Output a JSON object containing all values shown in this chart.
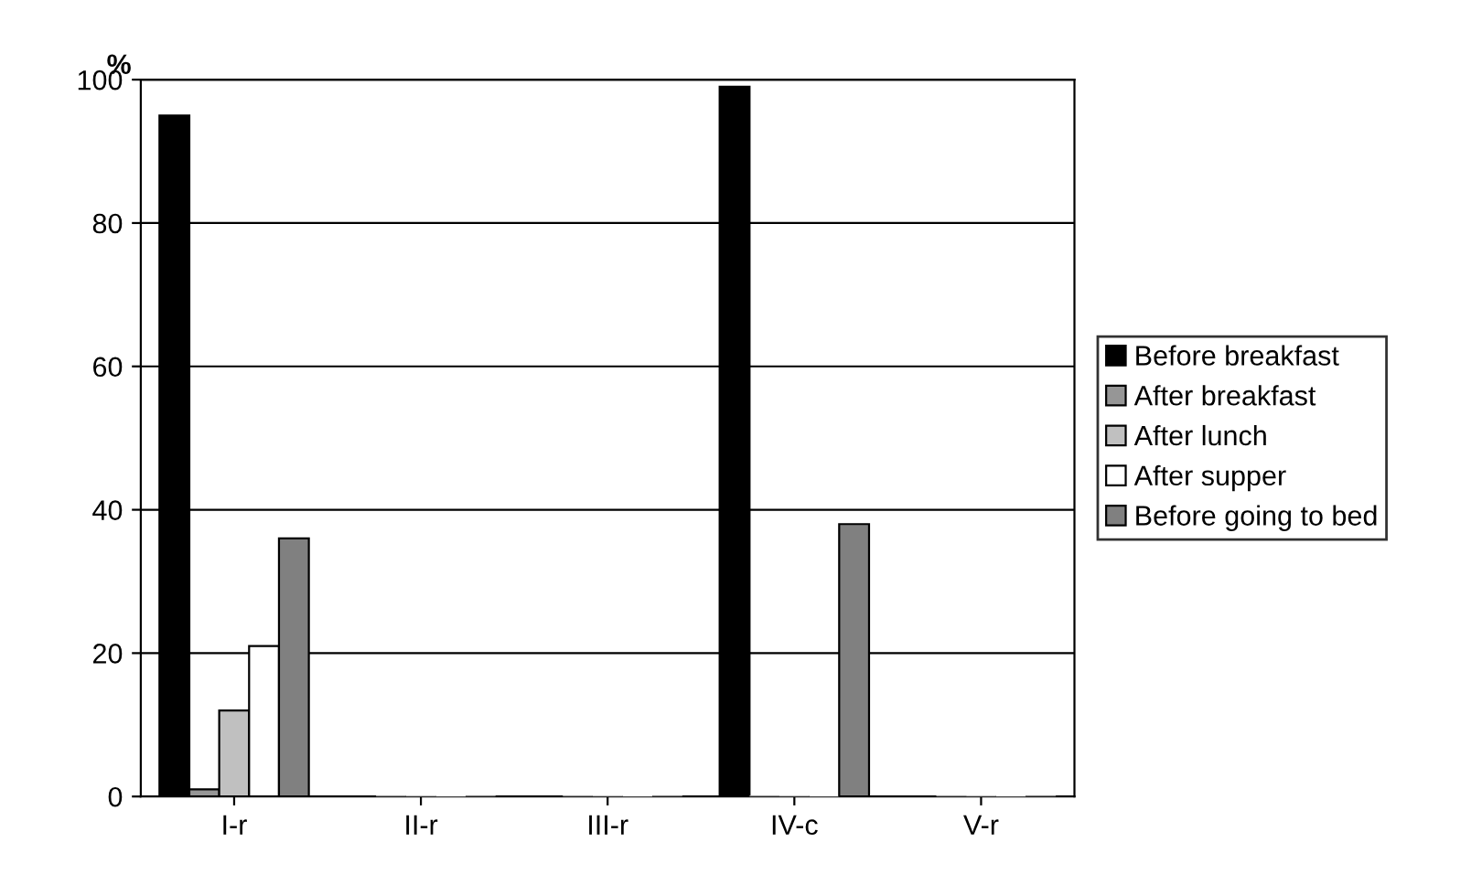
{
  "chart_data": {
    "type": "bar",
    "ylabel": "%",
    "categories": [
      "I-r",
      "II-r",
      "III-r",
      "IV-c",
      "V-r"
    ],
    "series": [
      {
        "name": "Before breakfast",
        "color": "#000000",
        "values": [
          95,
          0,
          0,
          99,
          0
        ]
      },
      {
        "name": "After breakfast",
        "color": "#969696",
        "values": [
          1,
          0,
          0,
          0,
          0
        ]
      },
      {
        "name": "After lunch",
        "color": "#c0c0c0",
        "values": [
          12,
          0,
          0,
          0,
          0
        ]
      },
      {
        "name": "After supper",
        "color": "#ffffff",
        "values": [
          21,
          0,
          0,
          0,
          0
        ]
      },
      {
        "name": "Before going to bed",
        "color": "#808080",
        "values": [
          36,
          0,
          0,
          38,
          0
        ]
      }
    ],
    "ylim": [
      0,
      100
    ],
    "yticks": [
      0,
      20,
      40,
      60,
      80,
      100
    ],
    "grid": "y",
    "legend": "right"
  }
}
